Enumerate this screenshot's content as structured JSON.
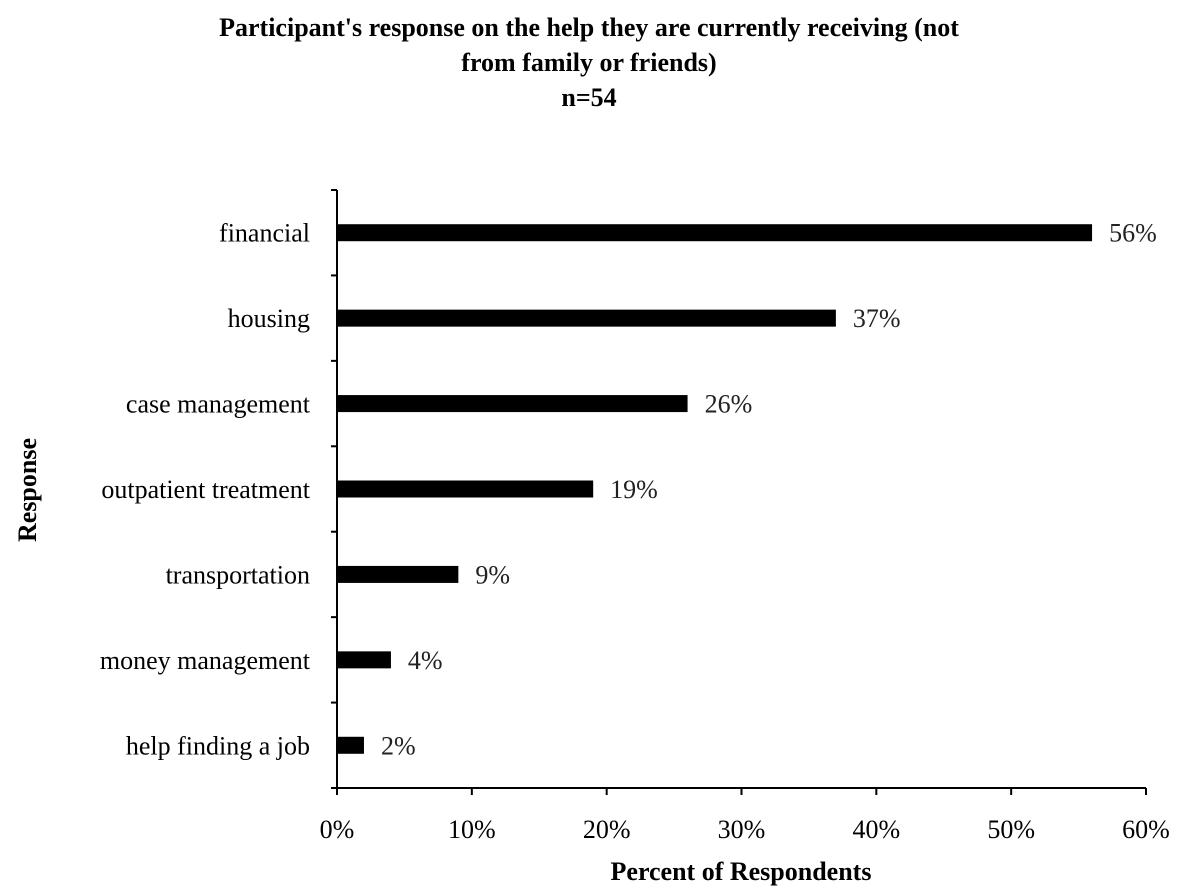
{
  "chart_data": {
    "type": "bar",
    "orientation": "horizontal",
    "title": "Participant's response on the help they are currently receiving (not from family or friends)",
    "title_lines": [
      "Participant's response on the help they are currently receiving (not",
      "from family or friends)"
    ],
    "subtitle": "n=54",
    "xlabel": "Percent of Respondents",
    "ylabel": "Response",
    "categories": [
      "financial",
      "housing",
      "case management",
      "outpatient treatment",
      "transportation",
      "money management",
      "help finding a job"
    ],
    "values": [
      56,
      37,
      26,
      19,
      9,
      4,
      2
    ],
    "data_labels": [
      "56%",
      "37%",
      "26%",
      "19%",
      "9%",
      "4%",
      "2%"
    ],
    "xlim": [
      0,
      60
    ],
    "x_ticks": [
      0,
      10,
      20,
      30,
      40,
      50,
      60
    ],
    "x_tick_labels": [
      "0%",
      "10%",
      "20%",
      "30%",
      "40%",
      "50%",
      "60%"
    ],
    "grid": false,
    "legend": "none",
    "bar_color": "#000000"
  }
}
